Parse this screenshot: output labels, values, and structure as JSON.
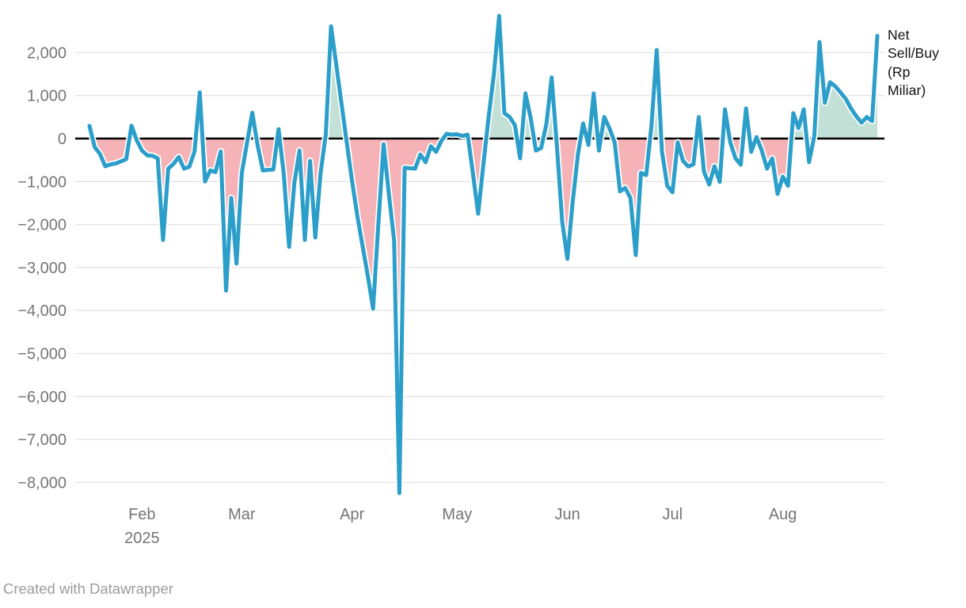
{
  "legend": {
    "label": "Net Sell/Buy (Rp Miliar)",
    "lines": [
      "Net",
      "Sell/Buy",
      "(Rp",
      "Miliar)"
    ]
  },
  "footer": {
    "text": "Created with Datawrapper"
  },
  "chart_data": {
    "type": "area",
    "title": "",
    "series_name": "Net Sell/Buy (Rp Miliar)",
    "x_description": "Daily trading days, late January 2025 through late August 2025",
    "ylabel": "Net Sell/Buy (Rp Miliar)",
    "ylim": [
      -8500,
      3000
    ],
    "grid": true,
    "legend_position": "right-of-plot",
    "values": [
      295,
      -200,
      -360,
      -645,
      -600,
      -580,
      -530,
      -480,
      300,
      -40,
      -280,
      -390,
      -400,
      -460,
      -2360,
      -700,
      -590,
      -430,
      -700,
      -660,
      -300,
      1075,
      -1000,
      -740,
      -780,
      -300,
      -3535,
      -1380,
      -2910,
      -800,
      -100,
      600,
      -150,
      -740,
      -730,
      -720,
      220,
      -830,
      -2520,
      -1040,
      -280,
      -2360,
      -520,
      -2300,
      -800,
      100,
      2610,
      1700,
      800,
      -100,
      -1000,
      -1800,
      -2500,
      -3200,
      -3960,
      -2000,
      -130,
      -1290,
      -2360,
      -8250,
      -680,
      -690,
      -700,
      -370,
      -550,
      -180,
      -310,
      -55,
      110,
      90,
      100,
      60,
      90,
      -800,
      -1750,
      -600,
      500,
      1500,
      2855,
      590,
      500,
      310,
      -460,
      1050,
      480,
      -280,
      -220,
      340,
      1420,
      -190,
      -1930,
      -2800,
      -1470,
      -370,
      350,
      -150,
      1050,
      -280,
      500,
      240,
      -90,
      -1230,
      -1150,
      -1380,
      -2710,
      -800,
      -850,
      300,
      2060,
      -300,
      -1100,
      -1250,
      -90,
      -520,
      -650,
      -600,
      500,
      -775,
      -1070,
      -645,
      -1010,
      680,
      -90,
      -460,
      -610,
      700,
      -310,
      35,
      -280,
      -700,
      -460,
      -1290,
      -885,
      -1100,
      590,
      240,
      680,
      -550,
      55,
      2245,
      830,
      1310,
      1215,
      1070,
      920,
      700,
      515,
      370,
      500,
      405,
      2390
    ],
    "y_ticks": [
      {
        "value": 2000,
        "label": "2,000"
      },
      {
        "value": 1000,
        "label": "1,000"
      },
      {
        "value": 0,
        "label": "0"
      },
      {
        "value": -1000,
        "label": "−1,000"
      },
      {
        "value": -2000,
        "label": "−2,000"
      },
      {
        "value": -3000,
        "label": "−3,000"
      },
      {
        "value": -4000,
        "label": "−4,000"
      },
      {
        "value": -5000,
        "label": "−5,000"
      },
      {
        "value": -6000,
        "label": "−6,000"
      },
      {
        "value": -7000,
        "label": "−7,000"
      },
      {
        "value": -8000,
        "label": "−8,000"
      }
    ],
    "month_ticks": [
      {
        "label": "Feb",
        "sublabel": "2025",
        "index": 10
      },
      {
        "label": "Mar",
        "sublabel": "",
        "index": 29
      },
      {
        "label": "Apr",
        "sublabel": "",
        "index": 50
      },
      {
        "label": "May",
        "sublabel": "",
        "index": 70
      },
      {
        "label": "Jun",
        "sublabel": "",
        "index": 91
      },
      {
        "label": "Jul",
        "sublabel": "",
        "index": 111
      },
      {
        "label": "Aug",
        "sublabel": "",
        "index": 132
      }
    ],
    "colors": {
      "line": "#2b9ec9",
      "line_halo": "#ffffff",
      "positive_fill": "#c2e0d6",
      "negative_fill": "#f5b2b7",
      "zero_line": "#000000",
      "grid": "#e2e2e2",
      "tick_text": "#757575",
      "footer_text": "#9c9c9c",
      "legend_text": "#111111"
    }
  }
}
